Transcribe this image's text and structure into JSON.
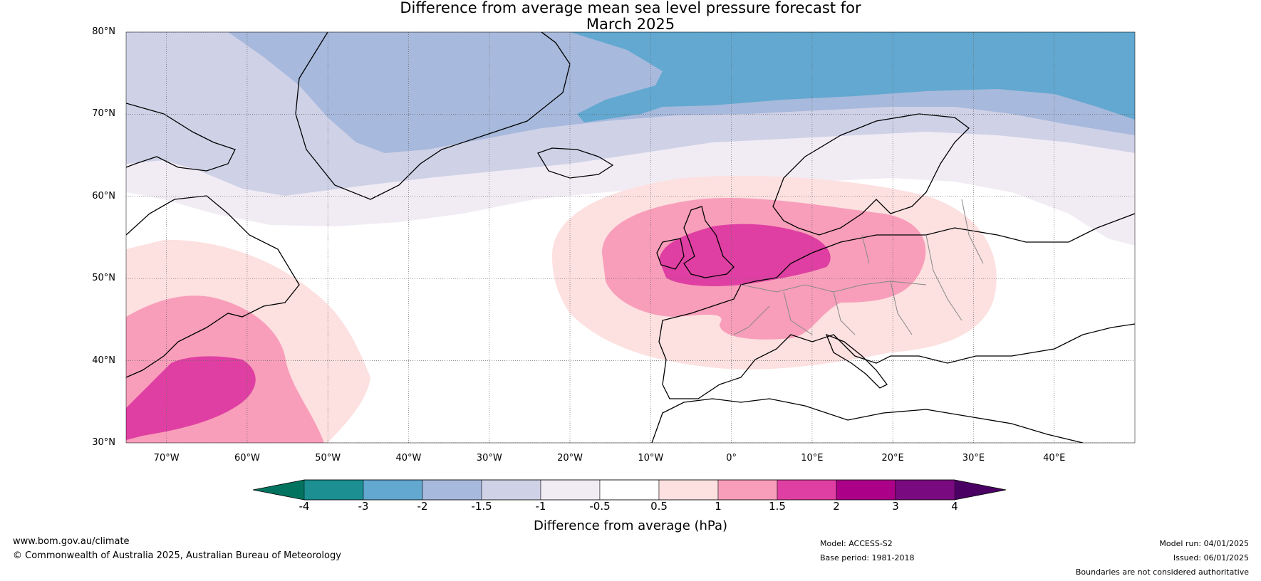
{
  "title": {
    "line1": "Difference from average mean sea level pressure forecast for",
    "line2": "March 2025"
  },
  "map": {
    "projection": "equirectangular",
    "lon_range": [
      -75,
      50
    ],
    "lat_range": [
      30,
      80
    ],
    "lat_ticks": [
      "30°N",
      "40°N",
      "50°N",
      "60°N",
      "70°N",
      "80°N"
    ],
    "lon_ticks": [
      "70°W",
      "60°W",
      "50°W",
      "40°W",
      "30°W",
      "20°W",
      "10°W",
      "0°",
      "10°E",
      "20°E",
      "30°E",
      "40°E"
    ],
    "gridlines": true
  },
  "colorbar": {
    "labels": [
      "-4",
      "-3",
      "-2",
      "-1.5",
      "-1",
      "-0.5",
      "0.5",
      "1",
      "1.5",
      "2",
      "3",
      "4"
    ],
    "colors": [
      "#1b8f92",
      "#62a8d0",
      "#a7b9dc",
      "#cfd1e7",
      "#f1ecf4",
      "#ffffff",
      "#fde0e0",
      "#f89eba",
      "#df3fa2",
      "#ab0087",
      "#7a0a80"
    ],
    "under_color": "#02735f",
    "over_color": "#4a0062",
    "title": "Difference from average (hPa)"
  },
  "footer": {
    "website": "www.bom.gov.au/climate",
    "copyright": "© Commonwealth of Australia 2025, Australian Bureau of Meteorology",
    "model": "Model: ACCESS-S2",
    "base_period": "Base period: 1981-2018",
    "model_run": "Model run: 04/01/2025",
    "issued": "Issued: 06/01/2025",
    "disclaimer": "Boundaries are not considered authoritative"
  }
}
